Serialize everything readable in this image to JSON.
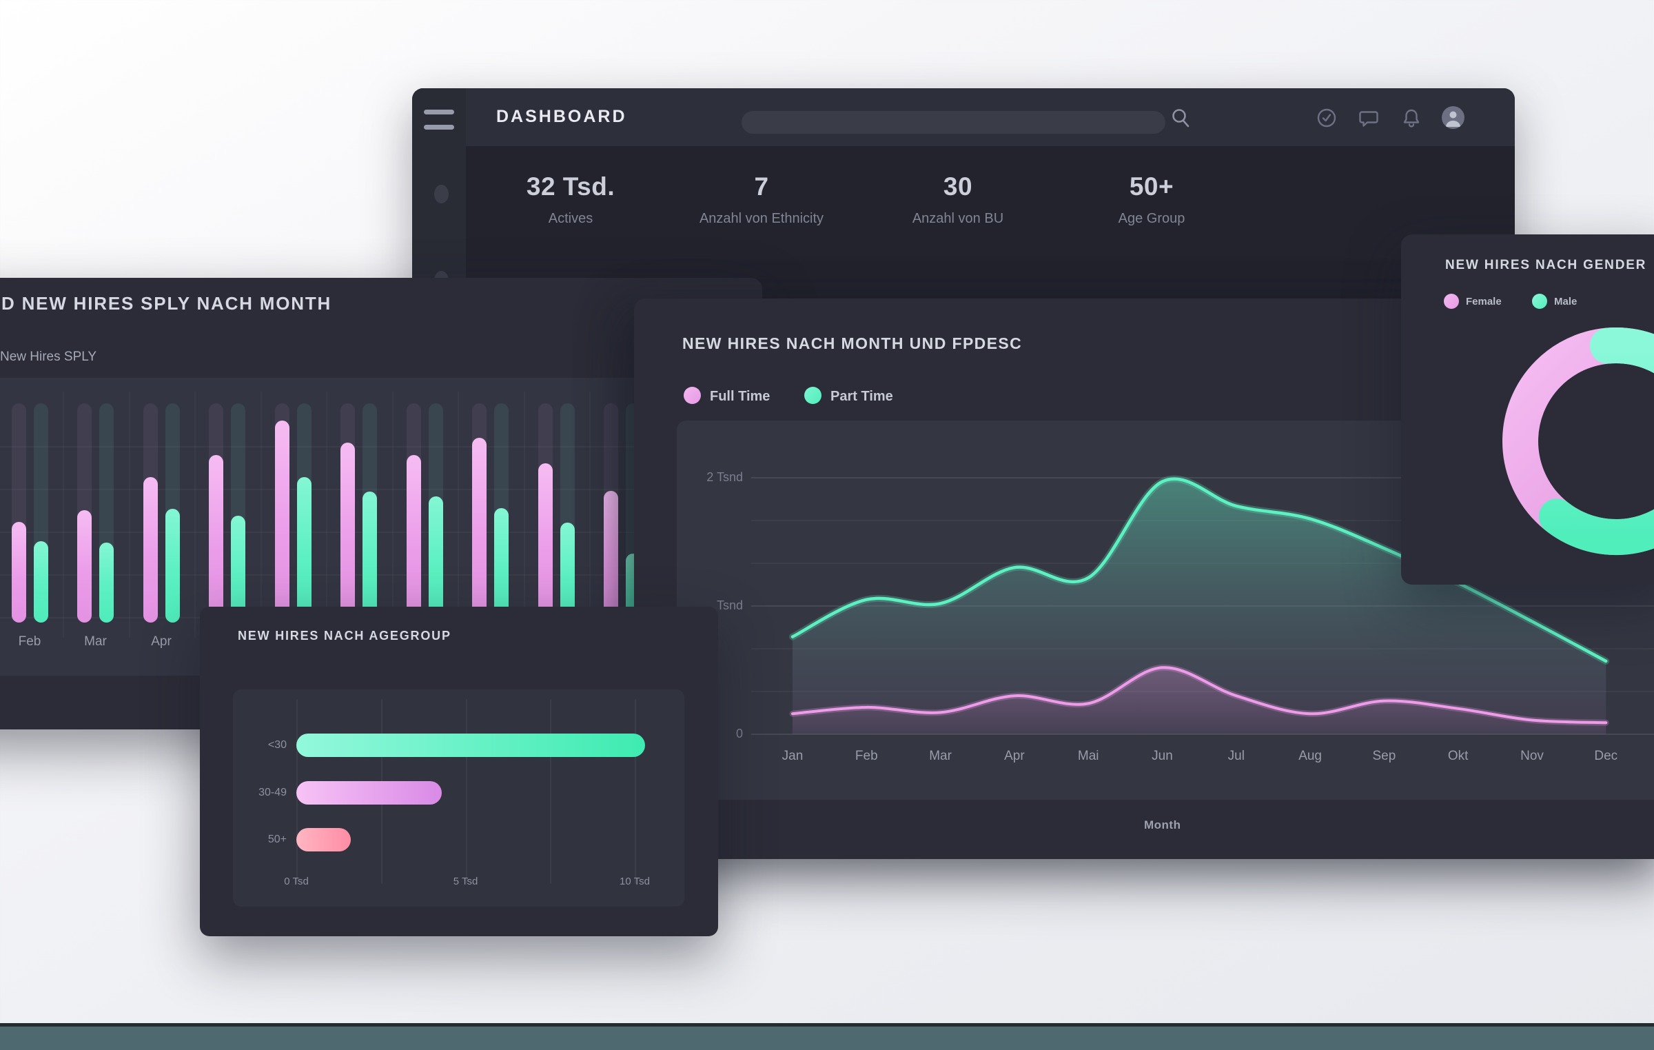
{
  "window": {
    "title": "DASHBOARD",
    "search_value": ""
  },
  "stats": {
    "items": [
      {
        "value": "32 Tsd.",
        "label": "Actives"
      },
      {
        "value": "7",
        "label": "Anzahl von Ethnicity"
      },
      {
        "value": "30",
        "label": "Anzahl von BU"
      },
      {
        "value": "50+",
        "label": "Age Group"
      }
    ]
  },
  "colors": {
    "accent_pink": "#efa3ec",
    "accent_teal": "#5ff0c3",
    "accent_salmon": "#ff96a8",
    "female": "#eda7ea",
    "male": "#5fefc0"
  },
  "sply_chart": {
    "title": "D NEW HIRES SPLY NACH MONTH",
    "legend": "New Hires SPLY",
    "visible_months": [
      "Feb",
      "Mar",
      "Apr"
    ],
    "chart_data": {
      "type": "bar",
      "categories": [
        "Feb",
        "Mar",
        "Apr",
        "",
        "",
        "",
        "",
        "",
        "",
        ""
      ],
      "series": [
        {
          "name": "New Hires",
          "color": "pink",
          "values": [
            146,
            163,
            211,
            243,
            293,
            261,
            243,
            268,
            231,
            191
          ]
        },
        {
          "name": "New Hires SPLY",
          "color": "teal",
          "values": [
            118,
            116,
            165,
            155,
            211,
            190,
            183,
            166,
            145,
            100
          ]
        }
      ],
      "note": "values are bar heights in px; axis labels hidden off-screen left"
    }
  },
  "fpdesc_chart": {
    "title": "NEW HIRES NACH MONTH UND FPDESC",
    "legend": [
      {
        "label": "Full Time"
      },
      {
        "label": "Part Time"
      }
    ],
    "xlabel": "Month",
    "yticks": [
      "2 Tsnd",
      "Tsnd",
      "0"
    ],
    "chart_data": {
      "type": "area",
      "x": [
        "Jan",
        "Feb",
        "Mar",
        "Apr",
        "Mai",
        "Jun",
        "Jul",
        "Aug",
        "Sep",
        "Okt",
        "Nov",
        "Dec"
      ],
      "series": [
        {
          "name": "Part Time",
          "color": "teal",
          "values": [
            0.76,
            1.05,
            1.02,
            1.3,
            1.22,
            1.97,
            1.78,
            1.68,
            1.45,
            1.18,
            0.88,
            0.57
          ]
        },
        {
          "name": "Full Time",
          "color": "pink",
          "values": [
            0.16,
            0.21,
            0.17,
            0.3,
            0.24,
            0.52,
            0.3,
            0.16,
            0.26,
            0.2,
            0.11,
            0.09
          ]
        }
      ],
      "ylim": [
        0,
        2.1
      ],
      "unit": "Tsnd",
      "grid": "horizontal"
    }
  },
  "age_chart": {
    "title": "NEW HIRES NACH AGEGROUP",
    "chart_data": {
      "type": "bar",
      "orientation": "horizontal",
      "categories": [
        "<30",
        "30-49",
        "50+"
      ],
      "values": [
        10.3,
        4.3,
        1.6
      ],
      "unit": "Tsd",
      "xticks": [
        "0 Tsd",
        "5 Tsd",
        "10 Tsd"
      ],
      "xlim": [
        0,
        10
      ]
    }
  },
  "gender_chart": {
    "title": "NEW HIRES NACH GENDER",
    "legend": [
      {
        "label": "Female"
      },
      {
        "label": "Male"
      }
    ],
    "chart_data": {
      "type": "pie",
      "labels": [
        "Female",
        "Male"
      ],
      "values": [
        38,
        62
      ]
    }
  }
}
